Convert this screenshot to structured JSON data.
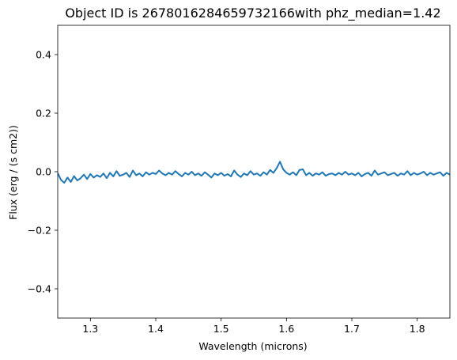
{
  "chart_data": {
    "type": "line",
    "title": "Object ID is 2678016284659732166with phz_median=1.42",
    "xlabel": "Wavelength (microns)",
    "ylabel": "Flux (erg / (s cm2))",
    "xlim": [
      1.25,
      1.85
    ],
    "ylim": [
      -0.5,
      0.5
    ],
    "x_ticks": [
      1.3,
      1.4,
      1.5,
      1.6,
      1.7,
      1.8
    ],
    "x_tick_labels": [
      "1.3",
      "1.4",
      "1.5",
      "1.6",
      "1.7",
      "1.8"
    ],
    "y_ticks": [
      -0.4,
      -0.2,
      0.0,
      0.2,
      0.4
    ],
    "y_tick_labels": [
      "−0.4",
      "−0.2",
      "0.0",
      "0.2",
      "0.4"
    ],
    "grid": false,
    "legend": "none",
    "series": [
      {
        "color": "#1f77b4",
        "x": [
          1.25,
          1.255,
          1.26,
          1.265,
          1.27,
          1.275,
          1.28,
          1.285,
          1.29,
          1.295,
          1.3,
          1.305,
          1.31,
          1.315,
          1.32,
          1.325,
          1.33,
          1.335,
          1.34,
          1.345,
          1.35,
          1.355,
          1.36,
          1.365,
          1.37,
          1.375,
          1.38,
          1.385,
          1.39,
          1.395,
          1.4,
          1.405,
          1.41,
          1.415,
          1.42,
          1.425,
          1.43,
          1.435,
          1.44,
          1.445,
          1.45,
          1.455,
          1.46,
          1.465,
          1.47,
          1.475,
          1.48,
          1.485,
          1.49,
          1.495,
          1.5,
          1.505,
          1.51,
          1.515,
          1.52,
          1.525,
          1.53,
          1.535,
          1.54,
          1.545,
          1.55,
          1.555,
          1.56,
          1.565,
          1.57,
          1.575,
          1.58,
          1.585,
          1.59,
          1.595,
          1.6,
          1.605,
          1.61,
          1.615,
          1.62,
          1.625,
          1.63,
          1.635,
          1.64,
          1.645,
          1.65,
          1.655,
          1.66,
          1.665,
          1.67,
          1.675,
          1.68,
          1.685,
          1.69,
          1.695,
          1.7,
          1.705,
          1.71,
          1.715,
          1.72,
          1.725,
          1.73,
          1.735,
          1.74,
          1.745,
          1.75,
          1.755,
          1.76,
          1.765,
          1.77,
          1.775,
          1.78,
          1.785,
          1.79,
          1.795,
          1.8,
          1.805,
          1.81,
          1.815,
          1.82,
          1.825,
          1.83,
          1.835,
          1.84,
          1.845,
          1.85
        ],
        "y": [
          -0.005,
          -0.028,
          -0.038,
          -0.02,
          -0.035,
          -0.015,
          -0.03,
          -0.022,
          -0.01,
          -0.025,
          -0.008,
          -0.02,
          -0.012,
          -0.018,
          -0.006,
          -0.022,
          -0.004,
          -0.016,
          0.002,
          -0.014,
          -0.01,
          -0.004,
          -0.018,
          0.004,
          -0.012,
          -0.006,
          -0.016,
          -0.002,
          -0.01,
          -0.004,
          -0.008,
          0.004,
          -0.006,
          -0.012,
          -0.004,
          -0.01,
          0.002,
          -0.008,
          -0.016,
          -0.004,
          -0.01,
          0.0,
          -0.012,
          -0.006,
          -0.014,
          -0.002,
          -0.01,
          -0.02,
          -0.006,
          -0.012,
          -0.004,
          -0.014,
          -0.008,
          -0.016,
          0.004,
          -0.01,
          -0.018,
          -0.006,
          -0.012,
          0.002,
          -0.01,
          -0.006,
          -0.014,
          -0.002,
          -0.01,
          0.006,
          -0.004,
          0.012,
          0.034,
          0.008,
          -0.004,
          -0.01,
          -0.002,
          -0.012,
          0.006,
          0.008,
          -0.012,
          -0.004,
          -0.014,
          -0.006,
          -0.01,
          -0.002,
          -0.014,
          -0.008,
          -0.006,
          -0.012,
          -0.004,
          -0.01,
          0.0,
          -0.01,
          -0.006,
          -0.012,
          -0.004,
          -0.016,
          -0.008,
          -0.004,
          -0.014,
          0.004,
          -0.01,
          -0.006,
          -0.002,
          -0.012,
          -0.008,
          -0.004,
          -0.014,
          -0.006,
          -0.01,
          0.002,
          -0.012,
          -0.004,
          -0.01,
          -0.006,
          0.0,
          -0.012,
          -0.004,
          -0.01,
          -0.006,
          -0.002,
          -0.014,
          -0.004,
          -0.01
        ]
      }
    ]
  }
}
